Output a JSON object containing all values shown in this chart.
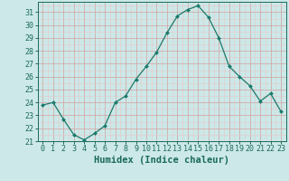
{
  "x": [
    0,
    1,
    2,
    3,
    4,
    5,
    6,
    7,
    8,
    9,
    10,
    11,
    12,
    13,
    14,
    15,
    16,
    17,
    18,
    19,
    20,
    21,
    22,
    23
  ],
  "y": [
    23.8,
    24.0,
    22.7,
    21.5,
    21.1,
    21.6,
    22.2,
    24.0,
    24.5,
    25.8,
    26.8,
    27.9,
    29.4,
    30.7,
    31.2,
    31.5,
    30.6,
    29.0,
    26.8,
    26.0,
    25.3,
    24.1,
    24.7,
    23.3
  ],
  "line_color": "#1a7a6a",
  "marker": "D",
  "marker_size": 2.0,
  "bg_color": "#cce8e8",
  "grid_minor_color": "#e8c8c8",
  "grid_major_color": "#d4a0a0",
  "xlabel": "Humidex (Indice chaleur)",
  "xlim": [
    -0.5,
    23.5
  ],
  "ylim": [
    21,
    31.8
  ],
  "yticks": [
    21,
    22,
    23,
    24,
    25,
    26,
    27,
    28,
    29,
    30,
    31
  ],
  "xticks": [
    0,
    1,
    2,
    3,
    4,
    5,
    6,
    7,
    8,
    9,
    10,
    11,
    12,
    13,
    14,
    15,
    16,
    17,
    18,
    19,
    20,
    21,
    22,
    23
  ],
  "tick_color": "#1a6a5a",
  "label_color": "#1a6a5a",
  "xlabel_fontsize": 7.5,
  "tick_fontsize": 6.0
}
